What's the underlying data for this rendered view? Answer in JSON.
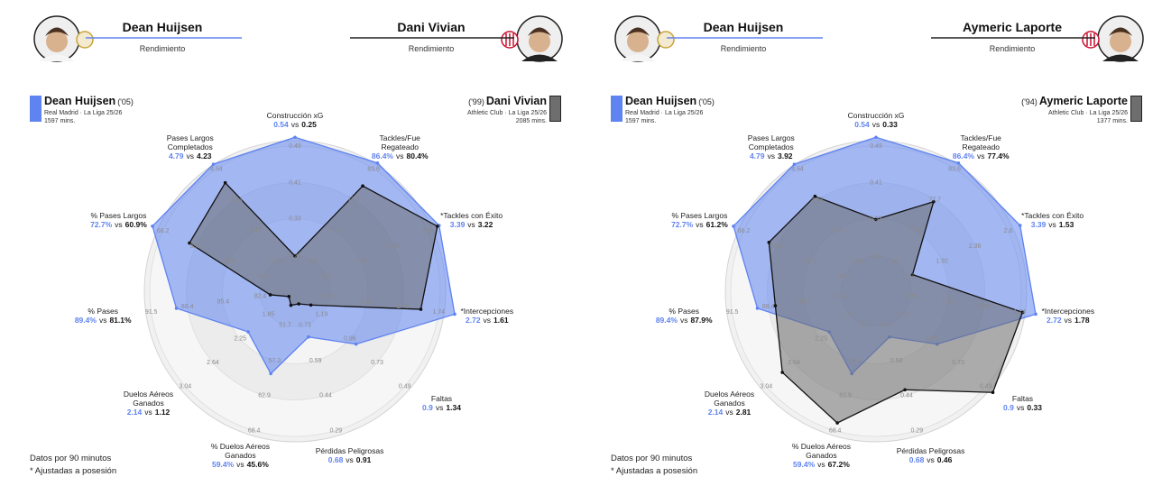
{
  "chart_data": [
    {
      "type": "radar",
      "subtitle": "Rendimiento",
      "versus": "vs",
      "players": [
        {
          "year": "('05)",
          "team": "Real Madrid · La Liga 25/26",
          "minutes": "1597 mins."
        },
        {
          "year": "('99)",
          "team": "Athletic Club · La Liga 25/26",
          "minutes": "2085 mins."
        }
      ],
      "categories": [
        "Construcción xG",
        "Tackles/Fue\nRegateado",
        "*Tackles con Éxito",
        "*Intercepciones",
        "Faltas",
        "Pérdidas Peligrosas",
        "% Duelos Aéreos\nGanados",
        "Duelos Aéreos\nGanados",
        "% Pases",
        "% Pases Largos",
        "Pases Largos\nCompletados"
      ],
      "ticks": [
        [
          0.25,
          0.33,
          0.41,
          0.49
        ],
        [
          66,
          71.9,
          77.7,
          83.6
        ],
        [
          1.47,
          1.92,
          2.36,
          2.8
        ],
        [
          0.95,
          1.21,
          1.48,
          1.74
        ],
        [
          1.19,
          0.96,
          0.73,
          0.49
        ],
        [
          0.73,
          0.59,
          0.44,
          0.29
        ],
        [
          51.7,
          57.3,
          62.9,
          68.4
        ],
        [
          1.85,
          2.25,
          2.64,
          3.04
        ],
        [
          82.4,
          85.4,
          88.4,
          91.5
        ],
        [
          46.2,
          52.9,
          59.6,
          66.2
        ],
        [
          2.43,
          3.14,
          3.84,
          4.54
        ]
      ],
      "series": [
        {
          "name": "Dean Huijsen",
          "color": "#5f83f0",
          "values": [
            0.54,
            86.4,
            3.39,
            2.72,
            0.9,
            0.68,
            59.4,
            2.14,
            89.4,
            72.7,
            4.79
          ],
          "value_labels": [
            "0.54",
            "86.4%",
            "3.39",
            "2.72",
            "0.9",
            "0.68",
            "59.4%",
            "2.14",
            "89.4%",
            "72.7%",
            "4.79"
          ]
        },
        {
          "name": "Dani Vivian",
          "color": "#6e6e6e",
          "values": [
            0.25,
            80.4,
            3.22,
            1.61,
            1.34,
            0.91,
            45.6,
            1.12,
            81.1,
            60.9,
            4.23
          ],
          "value_labels": [
            "0.25",
            "80.4%",
            "3.22",
            "1.61",
            "1.34",
            "0.91",
            "45.6%",
            "1.12",
            "81.1%",
            "60.9%",
            "4.23"
          ]
        }
      ],
      "notes": [
        "Datos por 90 minutos",
        "* Ajustadas a posesión"
      ]
    },
    {
      "type": "radar",
      "subtitle": "Rendimiento",
      "versus": "vs",
      "players": [
        {
          "year": "('05)",
          "team": "Real Madrid · La Liga 25/26",
          "minutes": "1597 mins."
        },
        {
          "year": "('94)",
          "team": "Athletic Club · La Liga 25/26",
          "minutes": "1377 mins."
        }
      ],
      "categories": [
        "Construcción xG",
        "Tackles/Fue\nRegateado",
        "*Tackles con Éxito",
        "*Intercepciones",
        "Faltas",
        "Pérdidas Peligrosas",
        "% Duelos Aéreos\nGanados",
        "Duelos Aéreos\nGanados",
        "% Pases",
        "% Pases Largos",
        "Pases Largos\nCompletados"
      ],
      "ticks": [
        [
          0.25,
          0.33,
          0.41,
          0.49
        ],
        [
          66,
          71.9,
          77.7,
          83.6
        ],
        [
          1.47,
          1.92,
          2.36,
          2.8
        ],
        [
          0.95,
          1.21,
          1.48,
          1.74
        ],
        [
          1.19,
          0.96,
          0.73,
          0.49
        ],
        [
          0.73,
          0.59,
          0.44,
          0.29
        ],
        [
          51.7,
          57.3,
          62.9,
          68.4
        ],
        [
          1.85,
          2.25,
          2.64,
          3.04
        ],
        [
          82.4,
          85.4,
          88.4,
          91.5
        ],
        [
          46.2,
          52.9,
          59.6,
          66.2
        ],
        [
          2.43,
          3.14,
          3.84,
          4.54
        ]
      ],
      "series": [
        {
          "name": "Dean Huijsen",
          "color": "#5f83f0",
          "values": [
            0.54,
            86.4,
            3.39,
            2.72,
            0.9,
            0.68,
            59.4,
            2.14,
            89.4,
            72.7,
            4.79
          ],
          "value_labels": [
            "0.54",
            "86.4%",
            "3.39",
            "2.72",
            "0.9",
            "0.68",
            "59.4%",
            "2.14",
            "89.4%",
            "72.7%",
            "4.79"
          ]
        },
        {
          "name": "Aymeric Laporte",
          "color": "#6e6e6e",
          "values": [
            0.33,
            77.4,
            1.53,
            1.78,
            0.33,
            0.46,
            67.2,
            2.81,
            87.9,
            61.2,
            3.92
          ],
          "value_labels": [
            "0.33",
            "77.4%",
            "1.53",
            "1.78",
            "0.33",
            "0.46",
            "67.2%",
            "2.81",
            "87.9%",
            "61.2%",
            "3.92"
          ]
        }
      ],
      "notes": [
        "Datos por 90 minutos",
        "* Ajustadas a posesión"
      ]
    }
  ]
}
